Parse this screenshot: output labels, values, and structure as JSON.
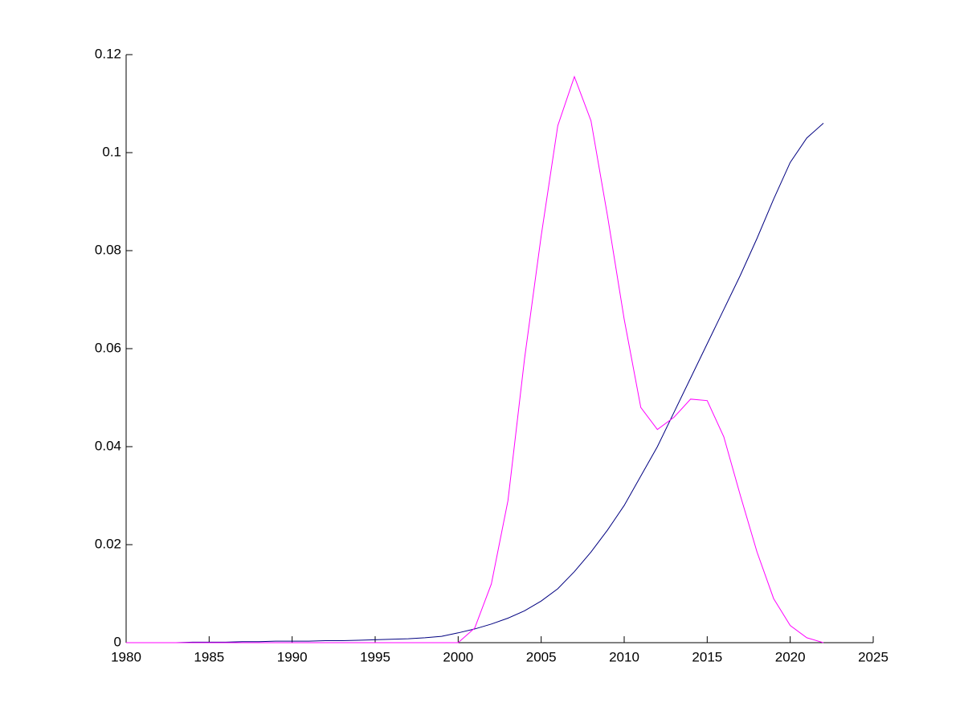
{
  "chart_data": {
    "type": "line",
    "x": [
      1980,
      1981,
      1982,
      1983,
      1984,
      1985,
      1986,
      1987,
      1988,
      1989,
      1990,
      1991,
      1992,
      1993,
      1994,
      1995,
      1996,
      1997,
      1998,
      1999,
      2000,
      2001,
      2002,
      2003,
      2004,
      2005,
      2006,
      2007,
      2008,
      2009,
      2010,
      2011,
      2012,
      2013,
      2014,
      2015,
      2016,
      2017,
      2018,
      2019,
      2020,
      2021,
      2022
    ],
    "series": [
      {
        "color": "#000080",
        "values": [
          0,
          0,
          0,
          0,
          0.0001,
          0.0001,
          0.0001,
          0.0002,
          0.0002,
          0.0003,
          0.0003,
          0.0003,
          0.0004,
          0.0004,
          0.0005,
          0.0006,
          0.0007,
          0.0008,
          0.001,
          0.0013,
          0.002,
          0.0028,
          0.0038,
          0.005,
          0.0065,
          0.0085,
          0.011,
          0.0145,
          0.0185,
          0.023,
          0.028,
          0.034,
          0.04,
          0.047,
          0.054,
          0.061,
          0.068,
          0.075,
          0.0825,
          0.0905,
          0.098,
          0.103,
          0.106
        ]
      },
      {
        "color": "#ff00ff",
        "values": [
          0,
          0,
          0,
          0,
          0,
          0,
          0,
          0,
          0,
          0,
          0,
          0,
          0,
          0,
          0,
          0,
          0,
          0,
          0,
          0,
          0,
          0.003,
          0.012,
          0.029,
          0.058,
          0.083,
          0.1055,
          0.1155,
          0.1065,
          0.087,
          0.066,
          0.048,
          0.0435,
          0.046,
          0.0497,
          0.0494,
          0.042,
          0.03,
          0.0185,
          0.009,
          0.0035,
          0.001,
          0
        ]
      }
    ],
    "xlim": [
      1980,
      2025
    ],
    "xticks": [
      1980,
      1985,
      1990,
      1995,
      2000,
      2005,
      2010,
      2015,
      2020,
      2025
    ],
    "ylim": [
      0,
      0.12
    ],
    "yticks": [
      0,
      0.02,
      0.04,
      0.06,
      0.08,
      0.1,
      0.12
    ]
  }
}
